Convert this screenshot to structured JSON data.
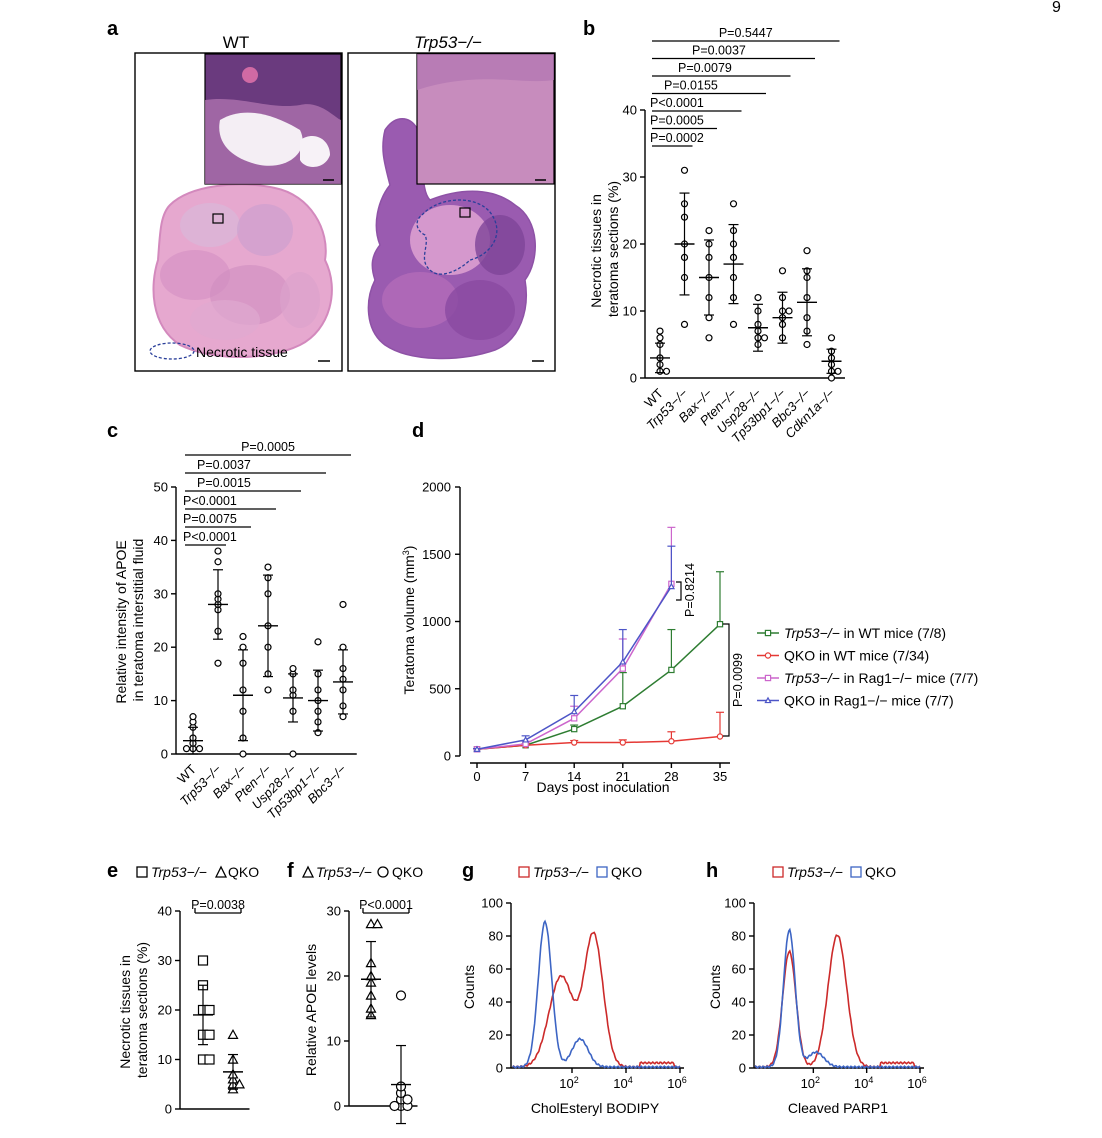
{
  "figure_mark": "9",
  "panels": {
    "a": {
      "letter": "a",
      "left_title": "WT",
      "right_title": "Trp53−/−",
      "legend_label": "Necrotic tissue",
      "colors": {
        "tissue_light": "#e6a8cf",
        "tissue_dark": "#8e52a6",
        "necrotic_outline": "#2a3f9a"
      }
    },
    "b": {
      "letter": "b",
      "chart_data": {
        "type": "scatter",
        "ylabel": "Necrotic tissues in teratoma sections (%)",
        "ylim": [
          0,
          40
        ],
        "yticks": [
          0,
          10,
          20,
          30,
          40
        ],
        "categories": [
          "WT",
          "Trp53−/−",
          "Bax−/−",
          "Pten−/−",
          "Usp28−/−",
          "Tp53bp1−/−",
          "Bbc3−/−",
          "Cdkn1a−/−"
        ],
        "italic_categories": [
          false,
          true,
          true,
          true,
          true,
          true,
          true,
          true
        ],
        "points": [
          [
            1,
            2,
            3,
            5,
            6,
            7,
            1
          ],
          [
            8,
            15,
            18,
            20,
            24,
            26,
            31
          ],
          [
            6,
            9,
            12,
            15,
            20,
            22,
            18
          ],
          [
            8,
            12,
            15,
            18,
            20,
            22,
            26
          ],
          [
            5,
            6,
            7,
            8,
            10,
            12,
            6
          ],
          [
            6,
            8,
            9,
            10,
            12,
            16,
            10
          ],
          [
            5,
            7,
            9,
            12,
            16,
            19,
            15
          ],
          [
            0,
            1,
            1,
            2,
            3,
            4,
            6
          ]
        ],
        "mean": [
          3,
          20,
          15,
          17,
          7.5,
          9,
          11.3,
          2.5
        ],
        "sd": [
          2.2,
          7.6,
          5.6,
          5.9,
          3.5,
          3.8,
          5,
          1.8
        ],
        "comparisons": [
          {
            "label": "P=0.0002",
            "to": 1
          },
          {
            "label": "P=0.0005",
            "to": 2
          },
          {
            "label": "P<0.0001",
            "to": 3
          },
          {
            "label": "P=0.0155",
            "to": 4
          },
          {
            "label": "P=0.0079",
            "to": 5
          },
          {
            "label": "P=0.0037",
            "to": 6
          },
          {
            "label": "P=0.5447",
            "to": 7
          }
        ]
      }
    },
    "c": {
      "letter": "c",
      "chart_data": {
        "type": "scatter",
        "ylabel": "Relative intensity of APOE in teratoma interstitial fluid",
        "ylim": [
          0,
          50
        ],
        "yticks": [
          0,
          10,
          20,
          30,
          40,
          50
        ],
        "categories": [
          "WT",
          "Trp53−/−",
          "Bax−/−",
          "Pten−/−",
          "Usp28−/−",
          "Tp53bp1−/−",
          "Bbc3−/−"
        ],
        "italic_categories": [
          false,
          true,
          true,
          true,
          true,
          true,
          true
        ],
        "points": [
          [
            1,
            1,
            2,
            3,
            5,
            6,
            7,
            1
          ],
          [
            17,
            23,
            27,
            28,
            29,
            30,
            36,
            38
          ],
          [
            0,
            3,
            8,
            12,
            17,
            20,
            22
          ],
          [
            12,
            15,
            20,
            24,
            30,
            33,
            35
          ],
          [
            0,
            8,
            11,
            12,
            15,
            16
          ],
          [
            4,
            6,
            8,
            10,
            12,
            15,
            21
          ],
          [
            7,
            9,
            12,
            14,
            16,
            20,
            28
          ]
        ],
        "mean": [
          2.5,
          28,
          11,
          24,
          10.5,
          10,
          13.5
        ],
        "sd": [
          2.5,
          6.5,
          8.5,
          9.5,
          4.5,
          5.7,
          6
        ],
        "comparisons": [
          {
            "label": "P<0.0001",
            "to": 1
          },
          {
            "label": "P=0.0075",
            "to": 2
          },
          {
            "label": "P<0.0001",
            "to": 3
          },
          {
            "label": "P=0.0015",
            "to": 4
          },
          {
            "label": "P=0.0037",
            "to": 5
          },
          {
            "label": "P=0.0005",
            "to": 6
          }
        ]
      }
    },
    "d": {
      "letter": "d",
      "chart_data": {
        "type": "line",
        "xlabel": "Days post inoculation",
        "ylabel": "Teratoma volume (mm3)",
        "xlim": [
          0,
          35
        ],
        "xticks": [
          0,
          7,
          14,
          21,
          28,
          35
        ],
        "ylim": [
          0,
          2000
        ],
        "yticks": [
          0,
          500,
          1000,
          1500,
          2000
        ],
        "series": [
          {
            "name": "Trp53−/− in WT mice (7/8)",
            "italic_part": "Trp53−/−",
            "plain_part": " in WT mice (7/8)",
            "color": "#2e7d32",
            "marker": "square",
            "x": [
              0,
              7,
              14,
              21,
              28,
              35
            ],
            "values": [
              50,
              80,
              200,
              370,
              640,
              980
            ],
            "err": [
              5,
              10,
              30,
              250,
              300,
              390
            ]
          },
          {
            "name": "QKO in WT mice (7/34)",
            "italic_part": "",
            "plain_part": "QKO in WT mice (7/34)",
            "color": "#e53935",
            "marker": "circle",
            "x": [
              0,
              7,
              14,
              21,
              28,
              35
            ],
            "values": [
              50,
              80,
              100,
              100,
              110,
              145
            ],
            "err": [
              5,
              10,
              15,
              20,
              70,
              180
            ]
          },
          {
            "name": "Trp53−/− in Rag1−/− mice (7/7)",
            "italic_part": "Trp53−/−",
            "plain_part": " in Rag1−/− mice (7/7)",
            "color": "#cc66cc",
            "marker": "square",
            "x": [
              0,
              7,
              14,
              21,
              28
            ],
            "values": [
              50,
              90,
              280,
              650,
              1280
            ],
            "err": [
              5,
              20,
              90,
              220,
              420
            ]
          },
          {
            "name": "QKO in Rag1−/− mice (7/7)",
            "italic_part": "",
            "plain_part": "QKO in Rag1−/− mice (7/7)",
            "color": "#4d55c7",
            "marker": "triangle",
            "x": [
              0,
              7,
              14,
              21,
              28
            ],
            "values": [
              50,
              120,
              330,
              700,
              1260
            ],
            "err": [
              5,
              30,
              120,
              240,
              300
            ]
          }
        ],
        "annotations": [
          {
            "label": "P=0.8214"
          },
          {
            "label": "P=0.0099"
          }
        ]
      }
    },
    "e": {
      "letter": "e",
      "legend": {
        "a": "Trp53−/−",
        "b": "QKO"
      },
      "chart_data": {
        "type": "scatter",
        "ylabel": "Necrotic tissues in teratoma sections (%)",
        "ylim": [
          0,
          40
        ],
        "yticks": [
          0,
          10,
          20,
          30,
          40
        ],
        "categories": [
          "Trp53−/−",
          "QKO"
        ],
        "points": [
          [
            10,
            10,
            15,
            15,
            20,
            20,
            25,
            30
          ],
          [
            4,
            5,
            5,
            6,
            7,
            10,
            15
          ]
        ],
        "mean": [
          19,
          7.5
        ],
        "sd": [
          6,
          3.5
        ],
        "comparisons": [
          {
            "label": "P=0.0038"
          }
        ]
      }
    },
    "f": {
      "letter": "f",
      "legend": {
        "a": "Trp53−/−",
        "b": "QKO"
      },
      "chart_data": {
        "type": "scatter",
        "ylabel": "Relative APOE levels",
        "ylim": [
          0,
          30
        ],
        "yticks": [
          0,
          10,
          20,
          30
        ],
        "categories": [
          "Trp53−/−",
          "QKO"
        ],
        "points": [
          [
            14,
            15,
            17,
            19,
            20,
            22,
            28,
            28
          ],
          [
            0,
            0,
            0,
            1,
            1,
            2,
            3,
            17
          ]
        ],
        "mean": [
          19.5,
          3.3
        ],
        "sd": [
          5.8,
          6
        ],
        "comparisons": [
          {
            "label": "P<0.0001"
          }
        ]
      }
    },
    "g": {
      "letter": "g",
      "legend": {
        "a": "Trp53−/−",
        "b": "QKO"
      },
      "chart_data": {
        "type": "area",
        "xlabel": "CholEsteryl BODIPY",
        "ylabel": "Counts",
        "ylim": [
          0,
          100
        ],
        "yticks": [
          0,
          20,
          40,
          60,
          80,
          100
        ],
        "xtick_labels": [
          "10",
          "10",
          "10"
        ],
        "xtick_exponents": [
          "2",
          "4",
          "6"
        ],
        "series": [
          {
            "name": "Trp53−/−",
            "color": "#cc2a2a",
            "peaks": [
              {
                "log_x": 1.6,
                "height": 55,
                "width": 0.45
              },
              {
                "log_x": 2.8,
                "height": 80,
                "width": 0.35
              }
            ]
          },
          {
            "name": "QKO",
            "color": "#3d65c4",
            "peaks": [
              {
                "log_x": 1.0,
                "height": 88,
                "width": 0.25
              },
              {
                "log_x": 2.3,
                "height": 17,
                "width": 0.3
              }
            ]
          }
        ]
      }
    },
    "h": {
      "letter": "h",
      "legend": {
        "a": "Trp53−/−",
        "b": "QKO"
      },
      "chart_data": {
        "type": "area",
        "xlabel": "Cleaved PARP1",
        "ylabel": "Counts",
        "ylim": [
          0,
          100
        ],
        "yticks": [
          0,
          20,
          40,
          60,
          80,
          100
        ],
        "xtick_labels": [
          "10",
          "10",
          "10"
        ],
        "xtick_exponents": [
          "2",
          "4",
          "6"
        ],
        "series": [
          {
            "name": "Trp53−/−",
            "color": "#cc2a2a",
            "peaks": [
              {
                "log_x": 1.1,
                "height": 70,
                "width": 0.25
              },
              {
                "log_x": 2.9,
                "height": 80,
                "width": 0.35
              }
            ]
          },
          {
            "name": "QKO",
            "color": "#3d65c4",
            "peaks": [
              {
                "log_x": 1.1,
                "height": 83,
                "width": 0.22
              },
              {
                "log_x": 2.1,
                "height": 9,
                "width": 0.3
              }
            ]
          }
        ]
      }
    }
  }
}
